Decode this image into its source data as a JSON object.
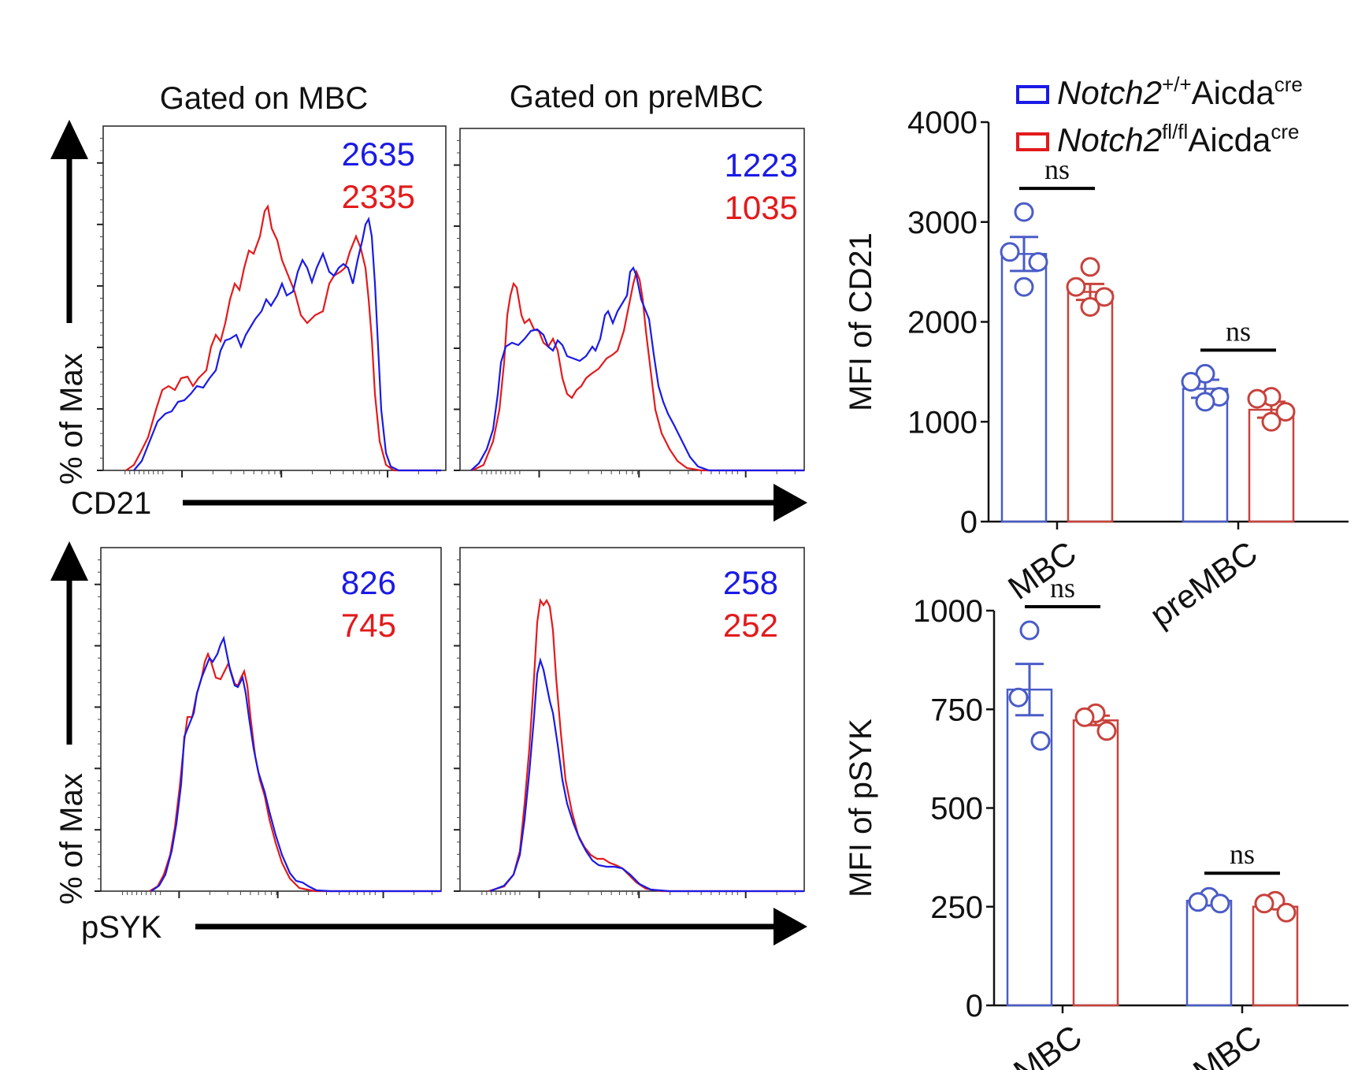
{
  "colors": {
    "wt": "#1a1ae6",
    "ko": "#e31a1c",
    "wt_bar": "#4a5cc7",
    "ko_bar": "#c8423c",
    "axis": "#111111"
  },
  "legend": [
    {
      "gene": "Notch2",
      "sup": "+/+",
      "driver": "Aicda",
      "driver_sup": "cre",
      "color": "#1a1ae6"
    },
    {
      "gene": "Notch2",
      "sup": "fl/fl",
      "driver": "Aicda",
      "driver_sup": "cre",
      "color": "#e31a1c"
    }
  ],
  "hist": {
    "col_titles": [
      "Gated on MBC",
      "Gated on preMBC"
    ],
    "y_label": "% of Max",
    "markers": [
      "CD21",
      "pSYK"
    ],
    "values": [
      {
        "wt": "2635",
        "ko": "2335"
      },
      {
        "wt": "1223",
        "ko": "1035"
      },
      {
        "wt": "826",
        "ko": "745"
      },
      {
        "wt": "258",
        "ko": "252"
      }
    ]
  },
  "chart_data": [
    {
      "type": "bar",
      "title": "",
      "ylabel": "MFI of CD21",
      "xlabel": "",
      "categories": [
        "MBC",
        "preMBC"
      ],
      "ylim": [
        0,
        4000
      ],
      "yticks": [
        "0",
        "1000",
        "2000",
        "3000",
        "4000"
      ],
      "significance": [
        "ns",
        "ns"
      ],
      "series": [
        {
          "name": "Notch2+/+Aicdacre",
          "values": [
            2680,
            1330
          ],
          "sem": [
            170,
            90
          ],
          "points": [
            [
              3100,
              2700,
              2600,
              2350
            ],
            [
              1480,
              1400,
              1250,
              1200
            ]
          ]
        },
        {
          "name": "Notch2fl/flAicdacre",
          "values": [
            2300,
            1120
          ],
          "sem": [
            80,
            80
          ],
          "points": [
            [
              2550,
              2350,
              2250,
              2150
            ],
            [
              1250,
              1230,
              1100,
              1000
            ]
          ]
        }
      ]
    },
    {
      "type": "bar",
      "title": "",
      "ylabel": "MFI of pSYK",
      "xlabel": "",
      "categories": [
        "MBC",
        "preMBC"
      ],
      "ylim": [
        0,
        1000
      ],
      "yticks": [
        "0",
        "250",
        "500",
        "750",
        "1000"
      ],
      "significance": [
        "ns",
        "ns"
      ],
      "series": [
        {
          "name": "Notch2+/+Aicdacre",
          "values": [
            800,
            265
          ],
          "sem": [
            65,
            5
          ],
          "points": [
            [
              950,
              780,
              670
            ],
            [
              275,
              262,
              258
            ]
          ]
        },
        {
          "name": "Notch2fl/flAicdacre",
          "values": [
            722,
            250
          ],
          "sem": [
            12,
            5
          ],
          "points": [
            [
              740,
              730,
              695
            ],
            [
              265,
              258,
              235
            ]
          ]
        }
      ]
    }
  ]
}
